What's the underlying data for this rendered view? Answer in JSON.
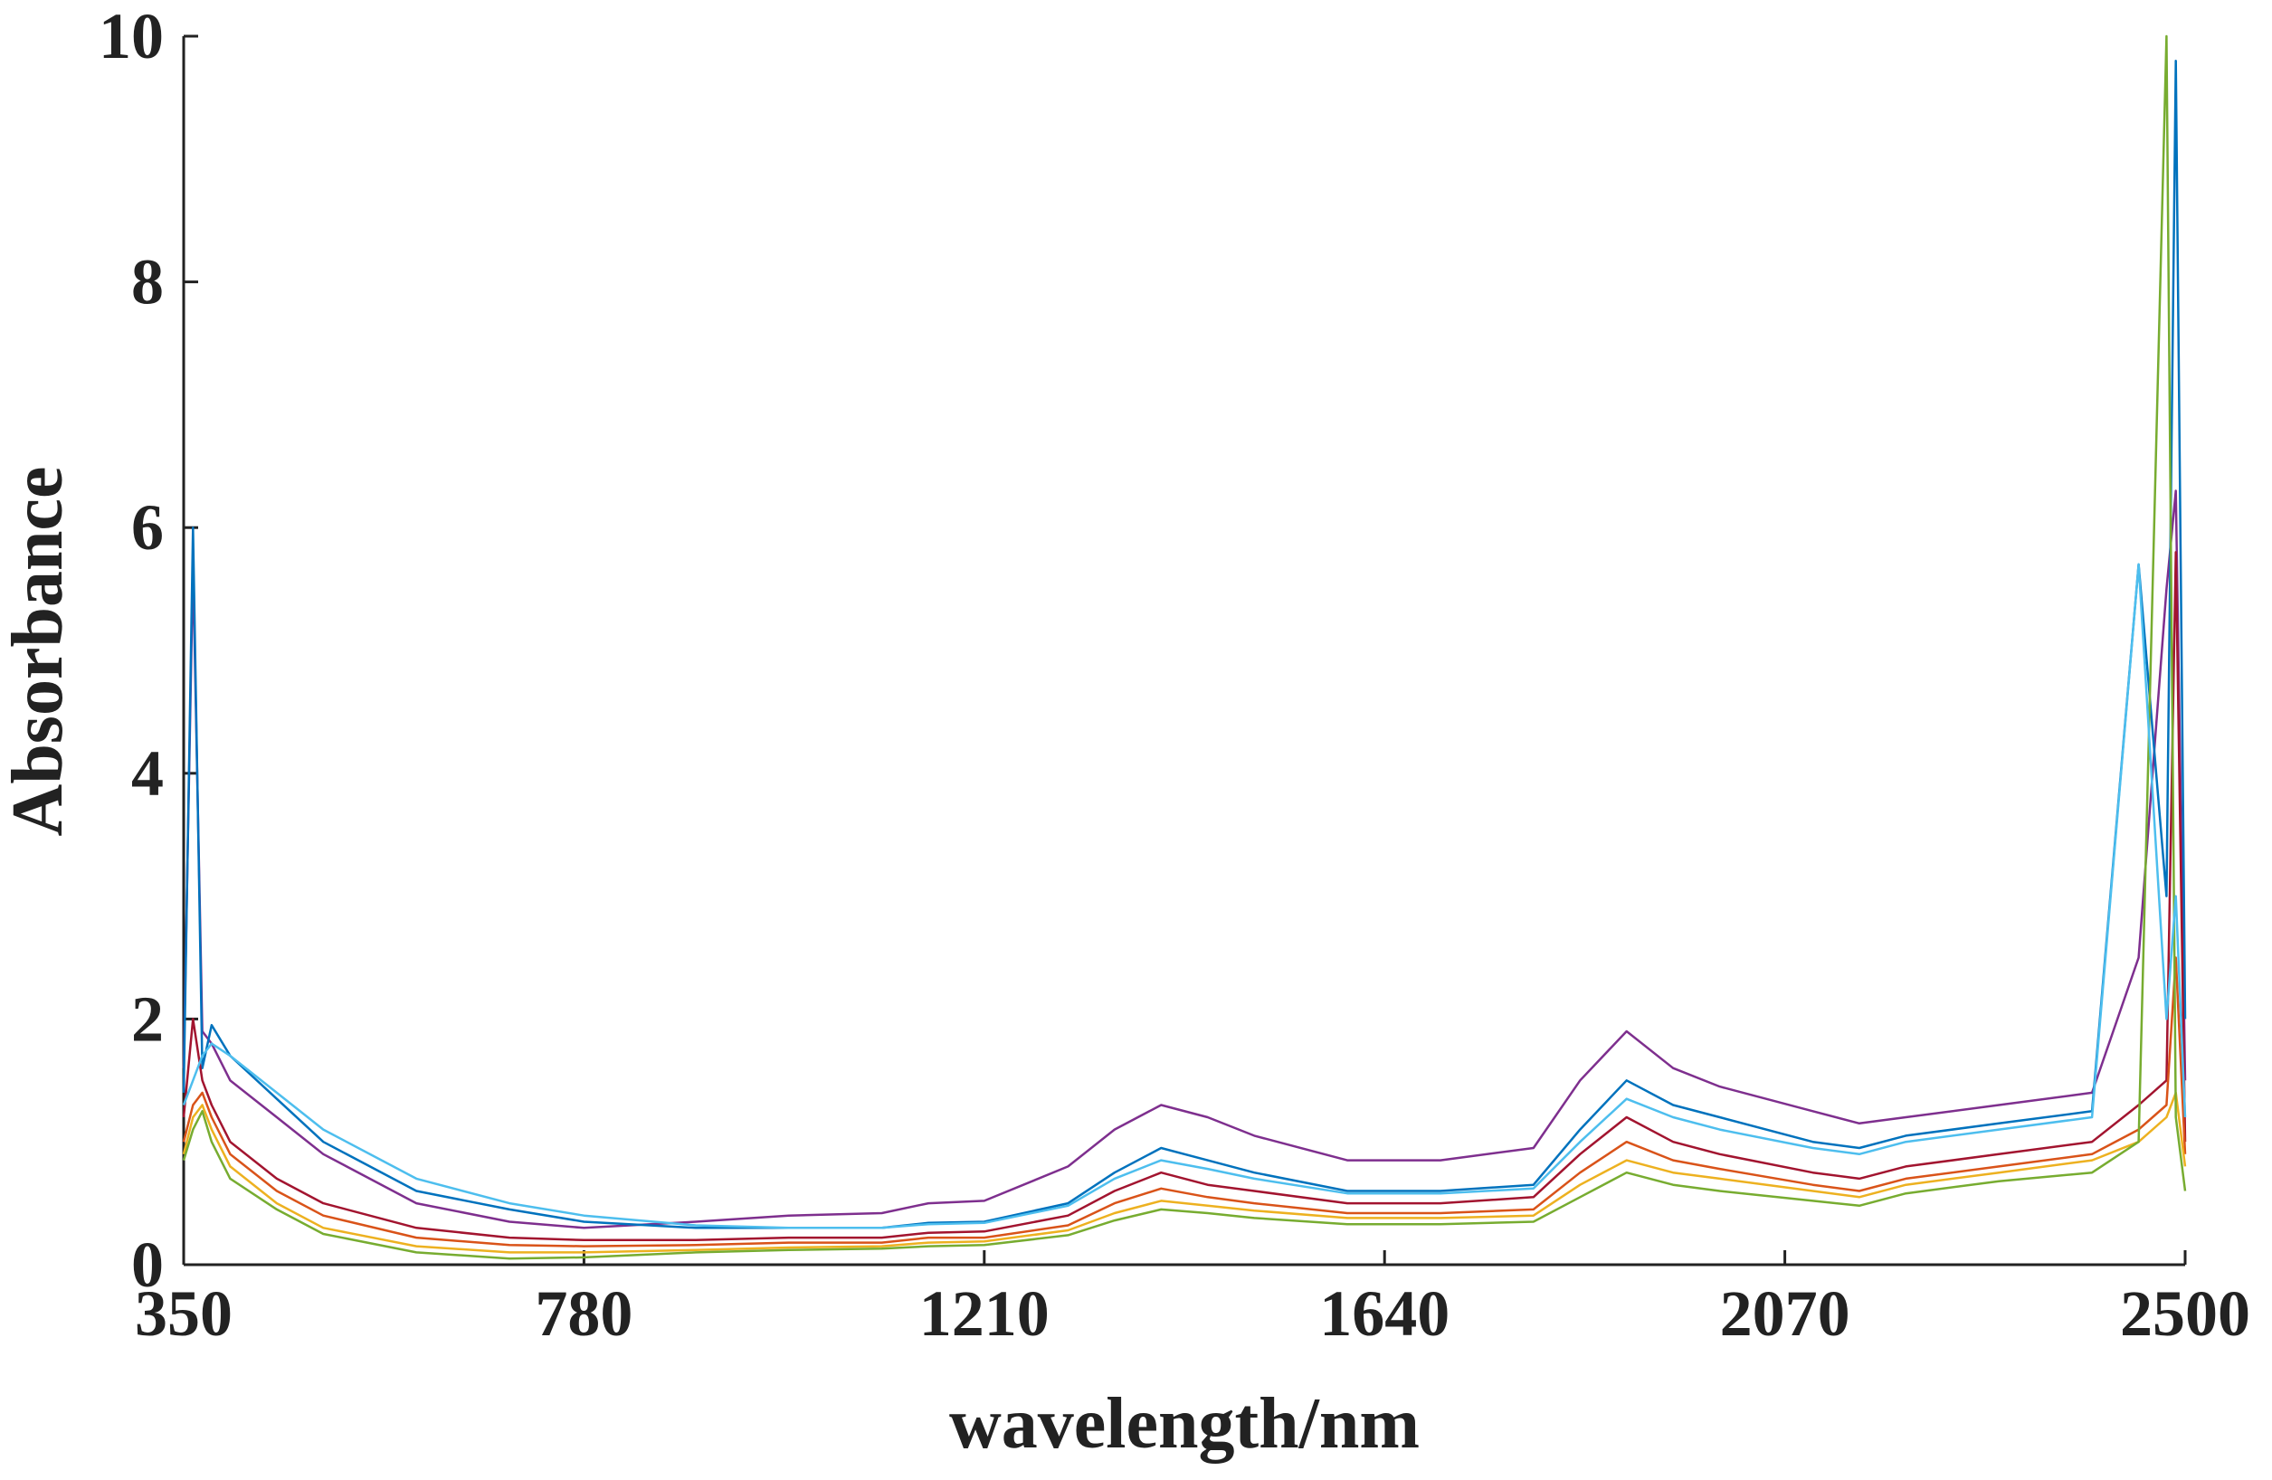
{
  "chart_data": {
    "type": "line",
    "x_label": "wavelength/nm",
    "y_label": "Absorbance",
    "xlim": [
      350,
      2500
    ],
    "xticks": [
      350,
      780,
      1210,
      1640,
      2070,
      2500
    ],
    "ylim": [
      0,
      10
    ],
    "yticks": [
      0,
      2,
      4,
      6,
      8,
      10
    ],
    "x": [
      350,
      360,
      370,
      380,
      400,
      450,
      500,
      600,
      700,
      780,
      900,
      1000,
      1100,
      1150,
      1210,
      1300,
      1350,
      1400,
      1450,
      1500,
      1600,
      1700,
      1800,
      1850,
      1900,
      1950,
      2000,
      2100,
      2150,
      2200,
      2300,
      2400,
      2450,
      2480,
      2490,
      2500
    ],
    "series": [
      {
        "color": "#7e2f8e",
        "values": [
          1.6,
          5.7,
          1.9,
          1.8,
          1.5,
          1.2,
          0.9,
          0.5,
          0.35,
          0.3,
          0.35,
          0.4,
          0.42,
          0.5,
          0.52,
          0.8,
          1.1,
          1.3,
          1.2,
          1.05,
          0.85,
          0.85,
          0.95,
          1.5,
          1.9,
          1.6,
          1.45,
          1.25,
          1.15,
          1.2,
          1.3,
          1.4,
          2.5,
          5.5,
          6.3,
          1.5
        ]
      },
      {
        "color": "#0072bd",
        "values": [
          1.4,
          6.0,
          1.6,
          1.95,
          1.7,
          1.35,
          1.0,
          0.6,
          0.45,
          0.35,
          0.3,
          0.3,
          0.3,
          0.34,
          0.35,
          0.5,
          0.75,
          0.95,
          0.85,
          0.75,
          0.6,
          0.6,
          0.65,
          1.1,
          1.5,
          1.3,
          1.2,
          1.0,
          0.95,
          1.05,
          1.15,
          1.25,
          5.7,
          3.0,
          9.8,
          2.0
        ]
      },
      {
        "color": "#a2142f",
        "values": [
          1.2,
          2.0,
          1.5,
          1.3,
          1.0,
          0.7,
          0.5,
          0.3,
          0.22,
          0.2,
          0.2,
          0.22,
          0.22,
          0.26,
          0.27,
          0.4,
          0.6,
          0.75,
          0.65,
          0.6,
          0.5,
          0.5,
          0.55,
          0.9,
          1.2,
          1.0,
          0.9,
          0.75,
          0.7,
          0.8,
          0.9,
          1.0,
          1.3,
          1.5,
          5.8,
          1.0
        ]
      },
      {
        "color": "#d95319",
        "values": [
          1.0,
          1.3,
          1.4,
          1.2,
          0.9,
          0.6,
          0.4,
          0.22,
          0.16,
          0.15,
          0.16,
          0.18,
          0.18,
          0.22,
          0.22,
          0.32,
          0.5,
          0.62,
          0.55,
          0.5,
          0.42,
          0.42,
          0.45,
          0.75,
          1.0,
          0.85,
          0.78,
          0.65,
          0.6,
          0.7,
          0.8,
          0.9,
          1.1,
          1.3,
          2.5,
          0.9
        ]
      },
      {
        "color": "#edb120",
        "values": [
          0.9,
          1.2,
          1.3,
          1.1,
          0.8,
          0.5,
          0.3,
          0.15,
          0.1,
          0.1,
          0.12,
          0.14,
          0.15,
          0.18,
          0.19,
          0.28,
          0.42,
          0.52,
          0.48,
          0.44,
          0.38,
          0.38,
          0.4,
          0.65,
          0.85,
          0.75,
          0.7,
          0.6,
          0.55,
          0.65,
          0.75,
          0.85,
          1.0,
          1.2,
          1.4,
          0.8
        ]
      },
      {
        "color": "#77ac30",
        "values": [
          0.85,
          1.1,
          1.25,
          1.0,
          0.7,
          0.45,
          0.25,
          0.1,
          0.05,
          0.06,
          0.1,
          0.12,
          0.13,
          0.15,
          0.16,
          0.24,
          0.36,
          0.45,
          0.42,
          0.38,
          0.33,
          0.33,
          0.35,
          0.55,
          0.75,
          0.65,
          0.6,
          0.52,
          0.48,
          0.58,
          0.68,
          0.75,
          1.0,
          10,
          1.2,
          0.6
        ]
      },
      {
        "color": "#4dbeee",
        "values": [
          1.3,
          1.5,
          1.7,
          1.8,
          1.7,
          1.4,
          1.1,
          0.7,
          0.5,
          0.4,
          0.32,
          0.3,
          0.3,
          0.33,
          0.34,
          0.48,
          0.7,
          0.85,
          0.78,
          0.7,
          0.58,
          0.58,
          0.62,
          1.0,
          1.35,
          1.2,
          1.1,
          0.95,
          0.9,
          1.0,
          1.1,
          1.2,
          5.7,
          2.0,
          3.0,
          1.2
        ]
      }
    ]
  }
}
